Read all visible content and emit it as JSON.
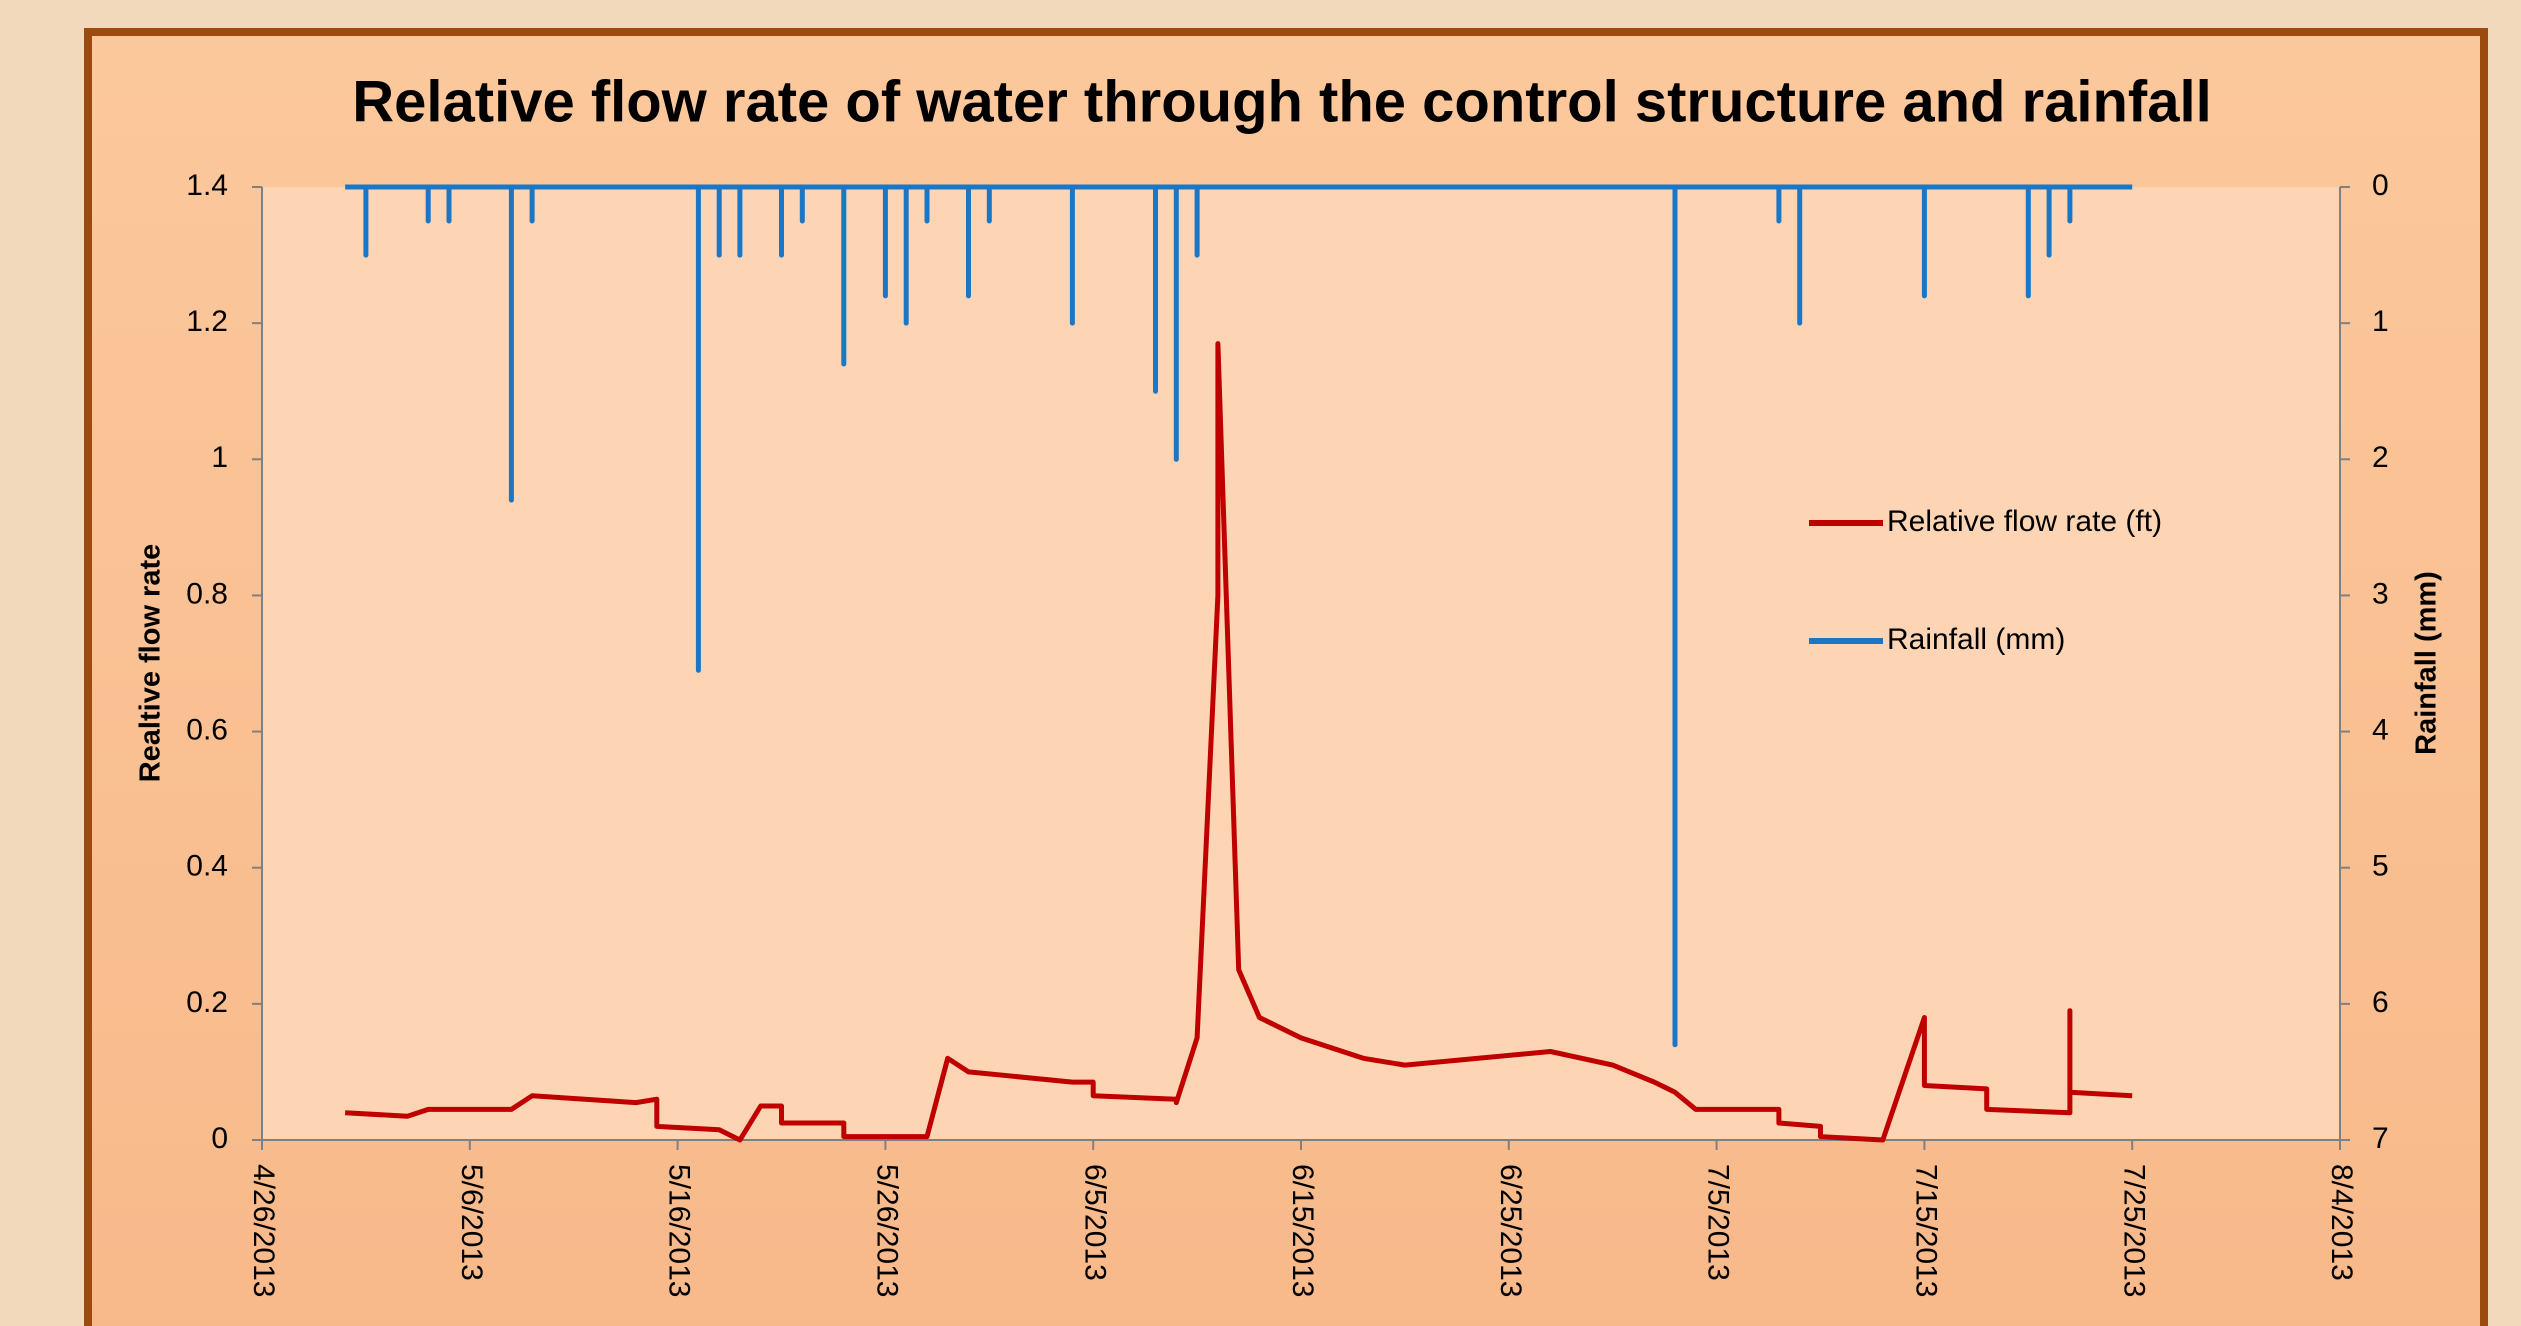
{
  "chart_data": {
    "type": "line",
    "title": "Relative flow rate of water through the control structure and rainfall",
    "ylabel": "Realtive flow rate",
    "y2label": "Rainfall (mm)",
    "xlim": [
      "4/26/2013",
      "8/4/2013"
    ],
    "xticks": [
      "4/26/2013",
      "5/6/2013",
      "5/16/2013",
      "5/26/2013",
      "6/5/2013",
      "6/15/2013",
      "6/25/2013",
      "7/5/2013",
      "7/15/2013",
      "7/25/2013",
      "8/4/2013"
    ],
    "ylim": [
      0,
      1.4
    ],
    "yticks": [
      0,
      0.2,
      0.4,
      0.6,
      0.8,
      1,
      1.2,
      1.4
    ],
    "y2lim": [
      7,
      0
    ],
    "y2ticks": [
      0,
      1,
      2,
      3,
      4,
      5,
      6,
      7
    ],
    "grid": false,
    "legend": "right",
    "series": [
      {
        "name": "Relative flow rate (ft)",
        "color": "#c00000",
        "x": [
          "4/30/2013",
          "5/3/2013",
          "5/4/2013",
          "5/8/2013",
          "5/9/2013",
          "5/14/2013",
          "5/15/2013",
          "5/15/2013",
          "5/18/2013",
          "5/19/2013",
          "5/20/2013",
          "5/21/2013",
          "5/21/2013",
          "5/24/2013",
          "5/24/2013",
          "5/28/2013",
          "5/29/2013",
          "5/30/2013",
          "6/4/2013",
          "6/5/2013",
          "6/5/2013",
          "6/9/2013",
          "6/9/2013",
          "6/10/2013",
          "6/11/2013",
          "6/11/2013",
          "6/12/2013",
          "6/13/2013",
          "6/15/2013",
          "6/18/2013",
          "6/20/2013",
          "6/27/2013",
          "6/30/2013",
          "7/2/2013",
          "7/3/2013",
          "7/4/2013",
          "7/8/2013",
          "7/8/2013",
          "7/10/2013",
          "7/10/2013",
          "7/13/2013",
          "7/15/2013",
          "7/15/2013",
          "7/18/2013",
          "7/18/2013",
          "7/22/2013",
          "7/22/2013",
          "7/22/2013",
          "7/25/2013"
        ],
        "values": [
          0.04,
          0.035,
          0.045,
          0.045,
          0.065,
          0.055,
          0.06,
          0.02,
          0.015,
          0,
          0.05,
          0.05,
          0.025,
          0.025,
          0.005,
          0.005,
          0.12,
          0.1,
          0.085,
          0.085,
          0.065,
          0.06,
          0.055,
          0.15,
          0.8,
          1.17,
          0.25,
          0.18,
          0.15,
          0.12,
          0.11,
          0.13,
          0.11,
          0.085,
          0.07,
          0.045,
          0.045,
          0.025,
          0.02,
          0.005,
          0,
          0.18,
          0.08,
          0.075,
          0.045,
          0.04,
          0.19,
          0.07,
          0.065
        ]
      },
      {
        "name": "Rainfall (mm)",
        "color": "#1b76c6",
        "axis": "y2",
        "x": [
          "4/30/2013",
          "5/1/2013",
          "5/1/2013",
          "5/1/2013",
          "5/4/2013",
          "5/4/2013",
          "5/4/2013",
          "5/5/2013",
          "5/5/2013",
          "5/5/2013",
          "5/8/2013",
          "5/8/2013",
          "5/8/2013",
          "5/9/2013",
          "5/9/2013",
          "5/9/2013",
          "5/17/2013",
          "5/17/2013",
          "5/17/2013",
          "5/18/2013",
          "5/18/2013",
          "5/18/2013",
          "5/19/2013",
          "5/19/2013",
          "5/19/2013",
          "5/21/2013",
          "5/21/2013",
          "5/21/2013",
          "5/22/2013",
          "5/22/2013",
          "5/22/2013",
          "5/24/2013",
          "5/24/2013",
          "5/24/2013",
          "5/26/2013",
          "5/26/2013",
          "5/26/2013",
          "5/27/2013",
          "5/27/2013",
          "5/27/2013",
          "5/28/2013",
          "5/28/2013",
          "5/28/2013",
          "5/30/2013",
          "5/30/2013",
          "5/30/2013",
          "5/31/2013",
          "5/31/2013",
          "5/31/2013",
          "6/4/2013",
          "6/4/2013",
          "6/4/2013",
          "6/8/2013",
          "6/8/2013",
          "6/8/2013",
          "6/9/2013",
          "6/9/2013",
          "6/9/2013",
          "6/10/2013",
          "6/10/2013",
          "6/10/2013",
          "7/3/2013",
          "7/3/2013",
          "7/3/2013",
          "7/8/2013",
          "7/8/2013",
          "7/8/2013",
          "7/9/2013",
          "7/9/2013",
          "7/9/2013",
          "7/15/2013",
          "7/15/2013",
          "7/15/2013",
          "7/20/2013",
          "7/20/2013",
          "7/20/2013",
          "7/21/2013",
          "7/21/2013",
          "7/21/2013",
          "7/22/2013",
          "7/22/2013",
          "7/22/2013",
          "7/25/2013"
        ],
        "values": [
          0,
          0,
          0.5,
          0,
          0,
          0.25,
          0,
          0,
          0.25,
          0,
          0,
          2.3,
          0,
          0,
          0.25,
          0,
          0,
          3.55,
          0,
          0,
          0.5,
          0,
          0,
          0.5,
          0,
          0,
          0.5,
          0,
          0,
          0.25,
          0,
          0,
          1.3,
          0,
          0,
          0.8,
          0,
          0,
          1,
          0,
          0,
          0.25,
          0,
          0,
          0.8,
          0,
          0,
          0.25,
          0,
          0,
          1,
          0,
          0,
          1.5,
          0,
          0,
          2,
          0,
          0,
          0.5,
          0,
          0,
          6.3,
          0,
          0,
          0.25,
          0,
          0,
          1,
          0,
          0,
          0.8,
          0,
          0,
          0.8,
          0,
          0,
          0.5,
          0,
          0,
          0.25,
          0,
          0
        ]
      }
    ]
  }
}
